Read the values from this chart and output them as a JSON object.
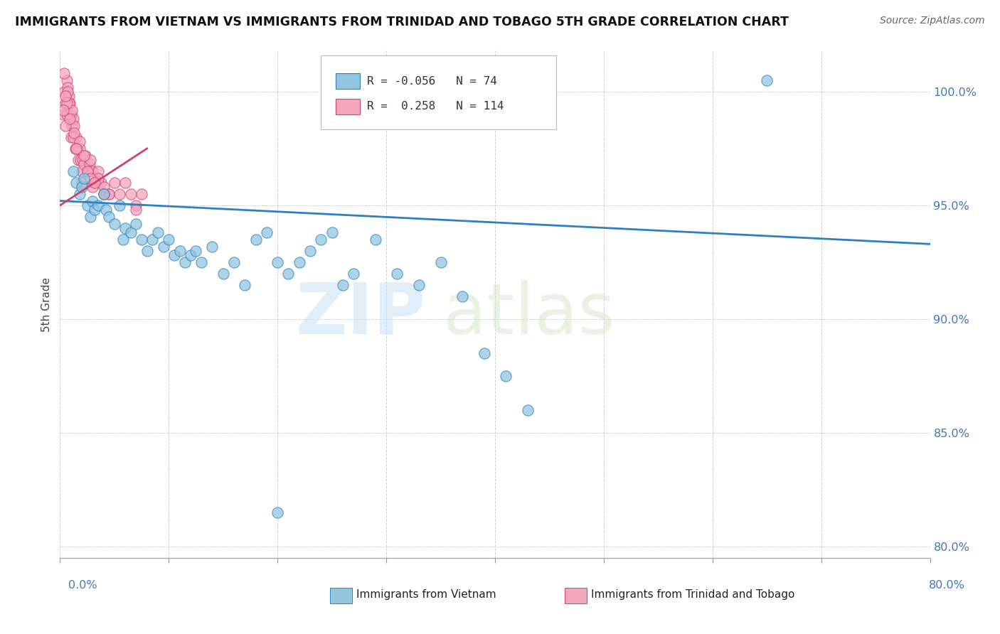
{
  "title": "IMMIGRANTS FROM VIETNAM VS IMMIGRANTS FROM TRINIDAD AND TOBAGO 5TH GRADE CORRELATION CHART",
  "source": "Source: ZipAtlas.com",
  "ylabel": "5th Grade",
  "yticks": [
    80.0,
    85.0,
    90.0,
    95.0,
    100.0
  ],
  "xmin": 0.0,
  "xmax": 80.0,
  "ymin": 79.5,
  "ymax": 101.8,
  "legend_r_vietnam": "-0.056",
  "legend_n_vietnam": "74",
  "legend_r_tt": "0.258",
  "legend_n_tt": "114",
  "color_vietnam": "#92c5de",
  "color_tt": "#f4a6bb",
  "color_trendline_vietnam": "#3080c0",
  "color_trendline_tt": "#d04070",
  "vietnam_trendline": [
    95.2,
    93.3
  ],
  "tt_trendline_x": [
    0.0,
    8.0
  ],
  "tt_trendline_y": [
    95.0,
    97.5
  ],
  "vietnam_x": [
    1.2,
    1.5,
    1.8,
    2.0,
    2.2,
    2.5,
    2.8,
    3.0,
    3.2,
    3.5,
    4.0,
    4.2,
    4.5,
    5.0,
    5.5,
    5.8,
    6.0,
    6.5,
    7.0,
    7.5,
    8.0,
    8.5,
    9.0,
    9.5,
    10.0,
    10.5,
    11.0,
    11.5,
    12.0,
    12.5,
    13.0,
    14.0,
    15.0,
    16.0,
    17.0,
    18.0,
    19.0,
    20.0,
    21.0,
    22.0,
    23.0,
    24.0,
    25.0,
    26.0,
    27.0,
    29.0,
    31.0,
    33.0,
    35.0,
    37.0,
    39.0,
    41.0,
    43.0,
    20.0,
    65.0
  ],
  "vietnam_y": [
    96.5,
    96.0,
    95.5,
    95.8,
    96.2,
    95.0,
    94.5,
    95.2,
    94.8,
    95.0,
    95.5,
    94.8,
    94.5,
    94.2,
    95.0,
    93.5,
    94.0,
    93.8,
    94.2,
    93.5,
    93.0,
    93.5,
    93.8,
    93.2,
    93.5,
    92.8,
    93.0,
    92.5,
    92.8,
    93.0,
    92.5,
    93.2,
    92.0,
    92.5,
    91.5,
    93.5,
    93.8,
    92.5,
    92.0,
    92.5,
    93.0,
    93.5,
    93.8,
    91.5,
    92.0,
    93.5,
    92.0,
    91.5,
    92.5,
    91.0,
    88.5,
    87.5,
    86.0,
    81.5,
    100.5
  ],
  "tt_x": [
    0.3,
    0.4,
    0.5,
    0.6,
    0.7,
    0.8,
    0.9,
    1.0,
    1.1,
    1.2,
    1.3,
    1.4,
    1.5,
    1.6,
    1.7,
    1.8,
    1.9,
    2.0,
    2.1,
    2.2,
    2.3,
    2.5,
    2.7,
    2.8,
    3.0,
    3.2,
    3.5,
    3.8,
    4.0,
    4.5,
    5.0,
    5.5,
    6.0,
    6.5,
    7.0,
    7.5,
    0.5,
    0.6,
    0.8,
    1.0,
    1.2,
    1.5,
    2.0,
    2.5,
    3.0,
    3.5,
    4.0,
    0.4,
    0.7,
    1.1,
    1.3,
    2.2,
    0.9,
    1.8,
    0.6,
    2.8,
    0.3,
    1.5,
    4.5,
    0.5,
    4.0,
    3.2,
    7.0
  ],
  "tt_y": [
    99.0,
    100.0,
    99.5,
    100.5,
    100.2,
    99.8,
    99.5,
    99.0,
    98.5,
    98.8,
    98.5,
    97.5,
    98.0,
    97.5,
    97.0,
    97.5,
    97.0,
    96.5,
    97.0,
    96.8,
    97.2,
    96.5,
    96.8,
    97.0,
    96.5,
    96.0,
    96.5,
    96.0,
    95.8,
    95.5,
    96.0,
    95.5,
    96.0,
    95.5,
    95.0,
    95.5,
    98.5,
    99.0,
    99.5,
    98.0,
    98.0,
    97.5,
    96.0,
    96.5,
    95.8,
    96.2,
    95.5,
    100.8,
    100.0,
    99.2,
    98.2,
    97.2,
    98.8,
    97.8,
    99.5,
    96.2,
    99.2,
    97.5,
    95.5,
    99.8,
    95.5,
    96.0,
    94.8
  ]
}
